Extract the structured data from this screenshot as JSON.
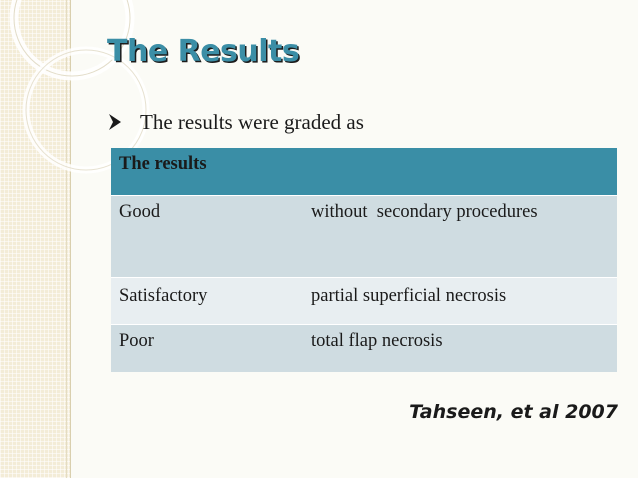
{
  "slide": {
    "title": "The Results",
    "bullet": "The results were graded as",
    "citation": "Tahseen, et al 2007"
  },
  "table": {
    "header": [
      "The results",
      ""
    ],
    "rows": [
      [
        "Good",
        "without  secondary procedures"
      ],
      [
        "Satisfactory",
        "partial superficial necrosis"
      ],
      [
        "Poor",
        "total flap necrosis"
      ]
    ]
  },
  "colors": {
    "accent": "#3a8ea6",
    "row_dark": "#cfdce1",
    "row_light": "#e8eef1",
    "side_panel": "#f3ecd7"
  },
  "icons": {
    "bullet": "arrow-bullet-icon",
    "decoration": "circle-rings-decoration"
  }
}
